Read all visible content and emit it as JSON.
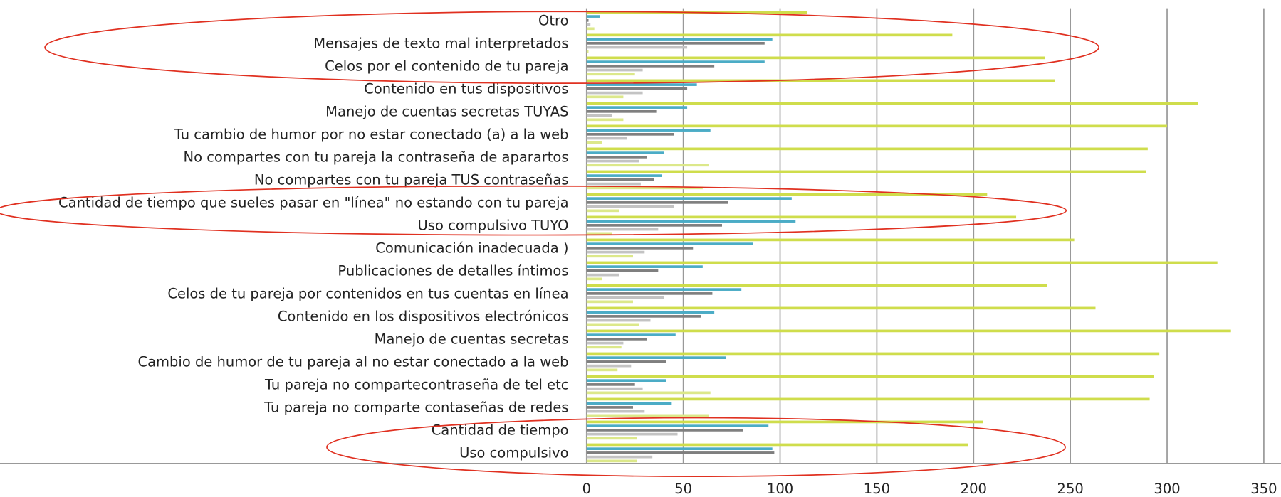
{
  "chart_data": {
    "type": "barh",
    "categories": [
      "Otro",
      "Mensajes de texto mal interpretados",
      "Celos por el contenido  de tu pareja",
      "Contenido en tus dispositivos",
      "Manejo de cuentas secretas TUYAS",
      "Tu cambio de humor por no estar conectado (a) a la web",
      "No compartes con tu pareja la contraseña de aparartos",
      "No compartes con tu pareja TUS contraseñas",
      "Cantidad de tiempo que sueles pasar en \"línea\" no estando con tu pareja",
      "Uso compulsivo TUYO",
      "Comunicación inadecuada )",
      "Publicaciones de detalles íntimos",
      "Celos de tu pareja por contenidos en tus cuentas en línea",
      "Contenido en los dispositivos electrónicos",
      "Manejo de cuentas secretas",
      "Cambio de humor de tu pareja al no estar conectado a la web",
      "Tu pareja no compartecontraseña de tel etc",
      "Tu pareja no comparte contaseñas de redes",
      "Cantidad de tiempo",
      "Uso compulsivo"
    ],
    "series": [
      {
        "color": "#cfdd4c",
        "values": [
          114,
          189,
          237,
          242,
          316,
          300,
          290,
          289,
          207,
          222,
          252,
          326,
          238,
          263,
          333,
          296,
          293,
          291,
          205,
          197
        ]
      },
      {
        "color": "#4bacc6",
        "values": [
          7,
          96,
          92,
          57,
          52,
          64,
          40,
          39,
          106,
          108,
          86,
          60,
          80,
          66,
          46,
          72,
          41,
          44,
          94,
          96
        ]
      },
      {
        "color": "#7f7f7f",
        "values": [
          1,
          92,
          66,
          52,
          36,
          45,
          31,
          35,
          73,
          70,
          55,
          37,
          65,
          59,
          31,
          41,
          25,
          24,
          81,
          97
        ]
      },
      {
        "color": "#c3c3c3",
        "values": [
          2,
          52,
          29,
          29,
          13,
          21,
          27,
          28,
          45,
          37,
          30,
          17,
          40,
          33,
          19,
          23,
          29,
          30,
          47,
          34
        ]
      },
      {
        "color": "#dce88a",
        "values": [
          4,
          1,
          25,
          19,
          19,
          8,
          63,
          60,
          17,
          13,
          24,
          8,
          24,
          27,
          18,
          16,
          64,
          63,
          26,
          26
        ]
      }
    ],
    "xlim": [
      0,
      350
    ],
    "xticks": [
      0,
      50,
      100,
      150,
      200,
      250,
      300,
      350
    ],
    "grid": true
  }
}
